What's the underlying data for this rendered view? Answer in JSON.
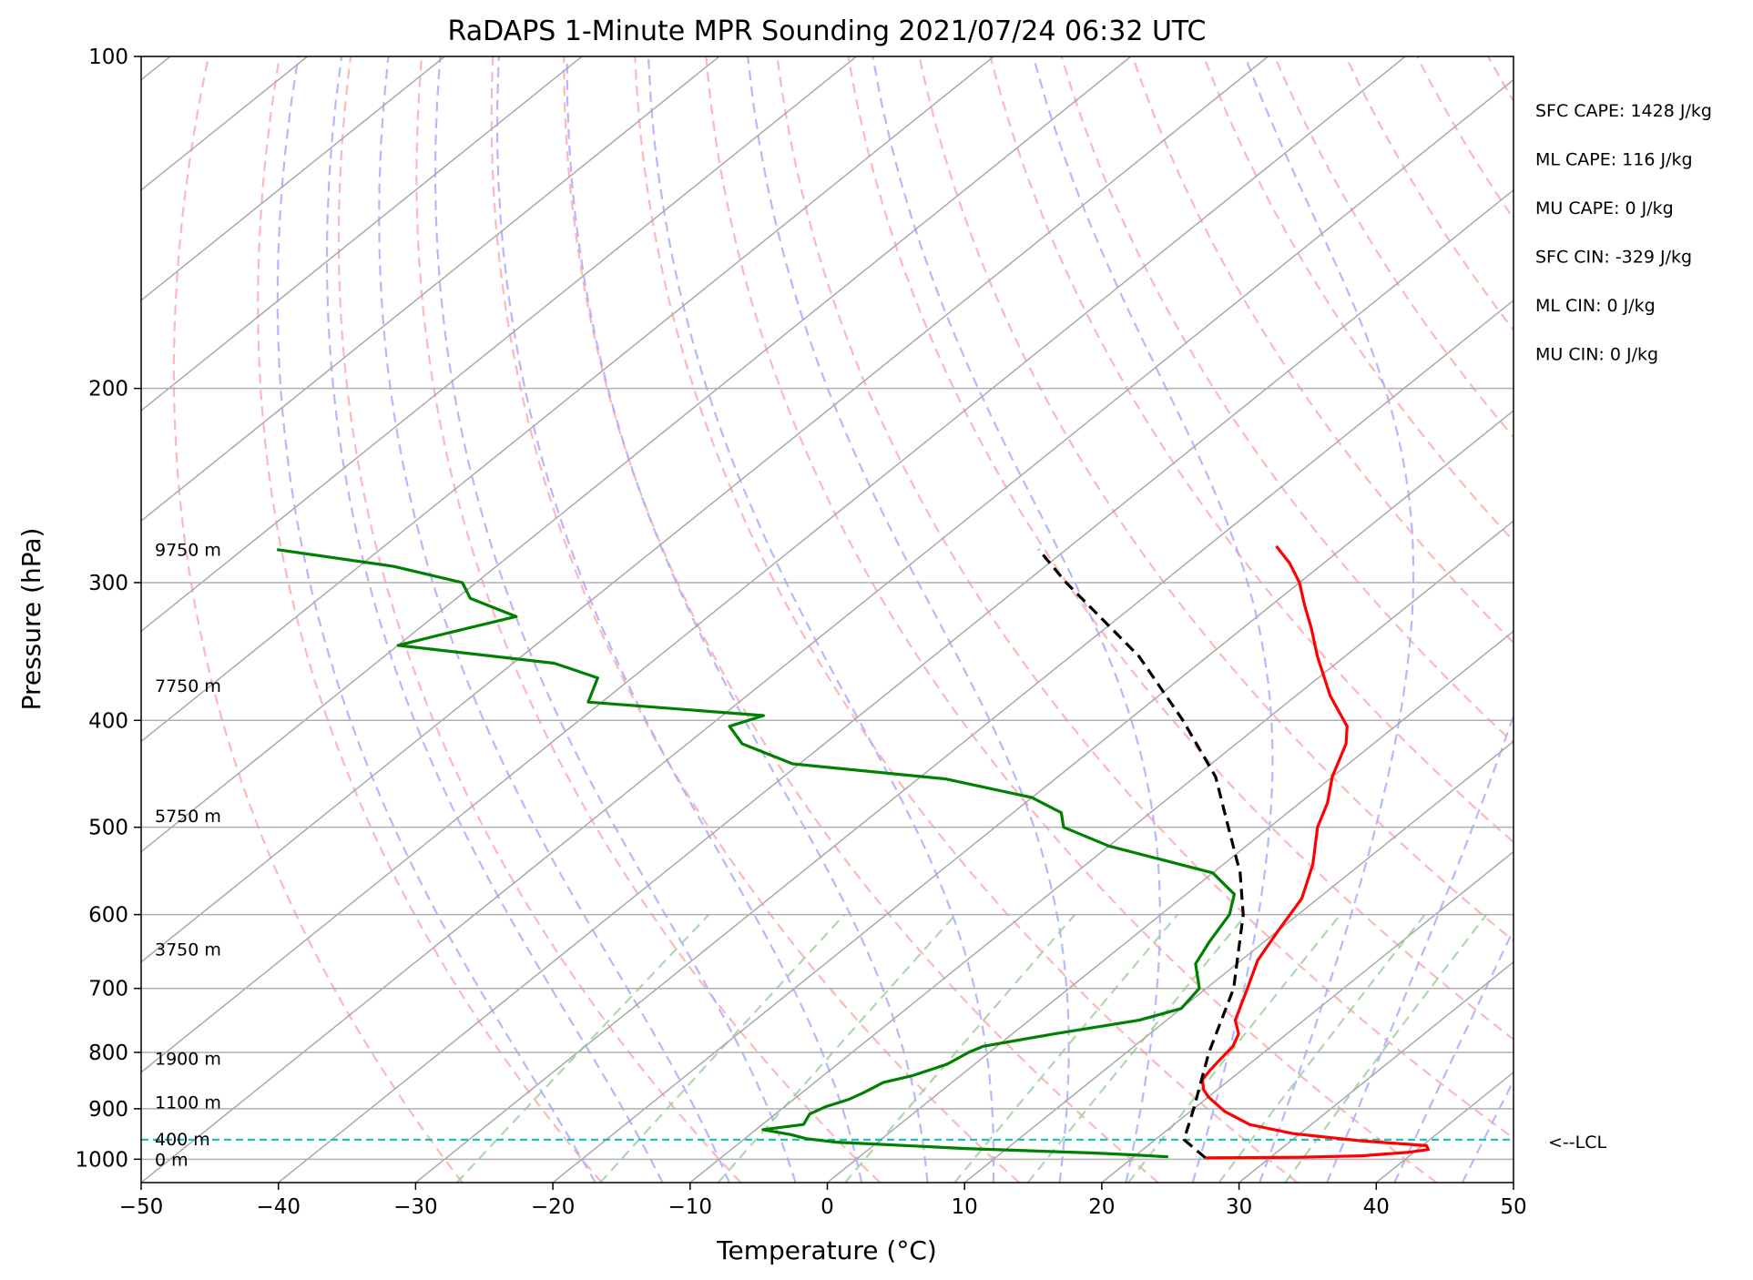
{
  "chart_data": {
    "type": "line",
    "subtype": "skew-t log-p sounding",
    "title": "RaDAPS 1-Minute MPR Sounding 2021/07/24 06:32 UTC",
    "xlabel": "Temperature (°C)",
    "ylabel": "Pressure (hPa)",
    "xlim": [
      -50,
      50
    ],
    "ylim": [
      1050,
      100
    ],
    "y_scale": "log",
    "skew_degrees_per_decade": 100,
    "grid": true,
    "x_ticks": [
      "−50",
      "−40",
      "−30",
      "−20",
      "−10",
      "0",
      "10",
      "20",
      "30",
      "40",
      "50"
    ],
    "x_tick_values": [
      -50,
      -40,
      -30,
      -20,
      -10,
      0,
      10,
      20,
      30,
      40,
      50
    ],
    "y_ticks": [
      "100",
      "200",
      "300",
      "400",
      "500",
      "600",
      "700",
      "800",
      "900",
      "1000"
    ],
    "y_tick_values": [
      100,
      200,
      300,
      400,
      500,
      600,
      700,
      800,
      900,
      1000
    ],
    "series": [
      {
        "key": "temperature",
        "color": "#ff0000",
        "style": "solid",
        "points": [
          [
            997,
            25.3
          ],
          [
            996,
            32.0
          ],
          [
            993,
            36.5
          ],
          [
            986,
            39.5
          ],
          [
            980,
            40.8
          ],
          [
            972,
            40.3
          ],
          [
            962,
            35.0
          ],
          [
            948,
            29.5
          ],
          [
            930,
            25.5
          ],
          [
            905,
            22.5
          ],
          [
            878,
            20.0
          ],
          [
            865,
            19.0
          ],
          [
            847,
            18.0
          ],
          [
            830,
            17.7
          ],
          [
            815,
            17.5
          ],
          [
            790,
            17.2
          ],
          [
            770,
            16.5
          ],
          [
            748,
            15.0
          ],
          [
            700,
            13.0
          ],
          [
            660,
            11.2
          ],
          [
            620,
            10.0
          ],
          [
            580,
            8.8
          ],
          [
            540,
            6.5
          ],
          [
            500,
            3.5
          ],
          [
            475,
            2.0
          ],
          [
            450,
            0.0
          ],
          [
            420,
            -2.0
          ],
          [
            405,
            -3.5
          ],
          [
            380,
            -7.5
          ],
          [
            350,
            -12.0
          ],
          [
            330,
            -15.0
          ],
          [
            315,
            -17.5
          ],
          [
            300,
            -20.0
          ],
          [
            288,
            -22.5
          ],
          [
            278,
            -25.0
          ]
        ]
      },
      {
        "key": "dewpoint",
        "color": "#008000",
        "style": "solid",
        "points": [
          [
            995,
            22.5
          ],
          [
            990,
            19.0
          ],
          [
            987,
            16.5
          ],
          [
            978,
            7.0
          ],
          [
            965,
            -3.0
          ],
          [
            958,
            -5.5
          ],
          [
            950,
            -7.0
          ],
          [
            940,
            -9.5
          ],
          [
            930,
            -7.0
          ],
          [
            910,
            -7.5
          ],
          [
            896,
            -7.0
          ],
          [
            883,
            -6.0
          ],
          [
            870,
            -5.5
          ],
          [
            852,
            -5.0
          ],
          [
            840,
            -3.5
          ],
          [
            820,
            -2.0
          ],
          [
            800,
            -1.5
          ],
          [
            790,
            -1.0
          ],
          [
            770,
            3.0
          ],
          [
            748,
            8.0
          ],
          [
            730,
            10.0
          ],
          [
            700,
            9.5
          ],
          [
            665,
            7.0
          ],
          [
            635,
            6.0
          ],
          [
            600,
            5.0
          ],
          [
            575,
            3.5
          ],
          [
            550,
            0.0
          ],
          [
            520,
            -10.0
          ],
          [
            500,
            -15.0
          ],
          [
            485,
            -16.5
          ],
          [
            470,
            -20.0
          ],
          [
            452,
            -28.0
          ],
          [
            438,
            -40.5
          ],
          [
            420,
            -46.0
          ],
          [
            405,
            -48.5
          ],
          [
            396,
            -47.0
          ],
          [
            385,
            -61.0
          ],
          [
            366,
            -62.5
          ],
          [
            355,
            -67.0
          ],
          [
            342,
            -80.0
          ],
          [
            335,
            -78.0
          ],
          [
            322,
            -74.0
          ],
          [
            310,
            -79.0
          ],
          [
            300,
            -81.0
          ],
          [
            290,
            -87.5
          ],
          [
            280,
            -97.5
          ]
        ]
      },
      {
        "key": "parcel",
        "color": "#000000",
        "style": "dashed",
        "points": [
          [
            997,
            25.3
          ],
          [
            960,
            22.1
          ],
          [
            900,
            20.0
          ],
          [
            800,
            16.0
          ],
          [
            700,
            12.0
          ],
          [
            600,
            6.0
          ],
          [
            550,
            2.0
          ],
          [
            500,
            -3.0
          ],
          [
            450,
            -8.5
          ],
          [
            400,
            -16.0
          ],
          [
            350,
            -25.0
          ],
          [
            300,
            -37.0
          ],
          [
            280,
            -42.0
          ]
        ]
      }
    ],
    "lcl_pressure_hpa": 960,
    "height_labels": [
      {
        "text": "0 m",
        "p": 1000
      },
      {
        "text": "400 m",
        "p": 958
      },
      {
        "text": "1100 m",
        "p": 887
      },
      {
        "text": "1900 m",
        "p": 810
      },
      {
        "text": "3750 m",
        "p": 645
      },
      {
        "text": "5750 m",
        "p": 488
      },
      {
        "text": "7750 m",
        "p": 372
      },
      {
        "text": "9750 m",
        "p": 280
      }
    ],
    "annotations": {
      "lcl": "<--LCL",
      "stats": [
        "SFC CAPE: 1428 J/kg",
        "ML CAPE: 116 J/kg",
        "MU CAPE: 0 J/kg",
        "SFC CIN: -329 J/kg",
        "ML CIN: 0 J/kg",
        "MU CIN: 0 J/kg"
      ]
    },
    "reference_lines": {
      "isotherm_color": "#a9a9a9",
      "dry_adiabat_color": "#ffaaaa",
      "moist_adiabat_color": "#aaaaff",
      "mixing_ratio_color": "#9fd09f",
      "lcl_line_color": "#20c0c0"
    }
  }
}
